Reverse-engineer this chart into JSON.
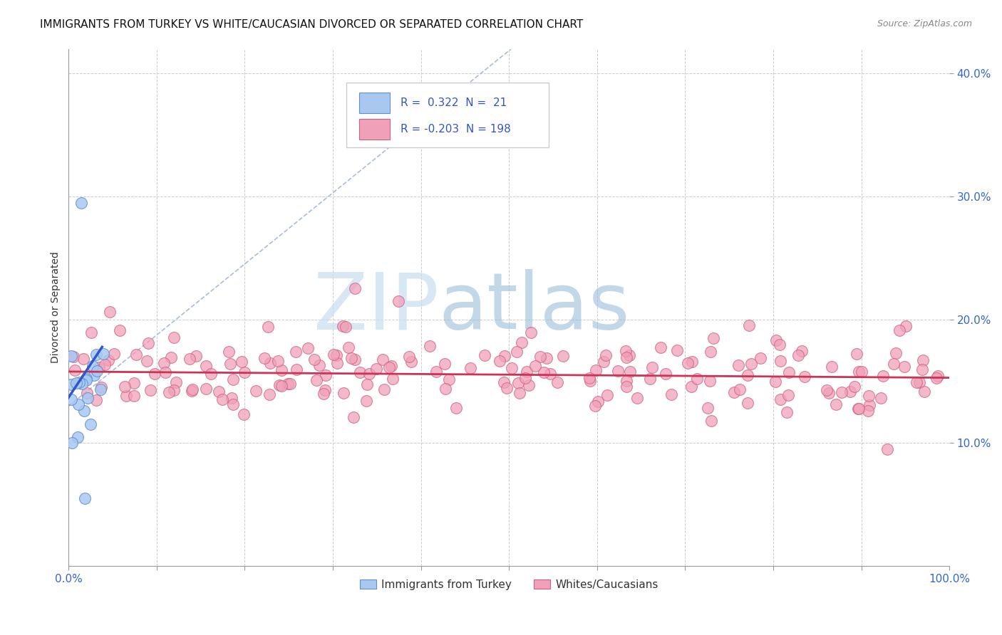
{
  "title": "IMMIGRANTS FROM TURKEY VS WHITE/CAUCASIAN DIVORCED OR SEPARATED CORRELATION CHART",
  "source": "Source: ZipAtlas.com",
  "ylabel": "Divorced or Separated",
  "xlim": [
    0.0,
    1.0
  ],
  "ylim": [
    0.0,
    0.42
  ],
  "xticks": [
    0.0,
    0.1,
    0.2,
    0.3,
    0.4,
    0.5,
    0.6,
    0.7,
    0.8,
    0.9,
    1.0
  ],
  "xticklabels": [
    "0.0%",
    "",
    "",
    "",
    "",
    "",
    "",
    "",
    "",
    "",
    "100.0%"
  ],
  "yticks": [
    0.1,
    0.2,
    0.3,
    0.4
  ],
  "yticklabels": [
    "10.0%",
    "20.0%",
    "30.0%",
    "40.0%"
  ],
  "grid_color": "#cccccc",
  "background_color": "#ffffff",
  "blue_fill": "#a8c8f0",
  "blue_edge": "#6090d0",
  "pink_fill": "#f0a0b8",
  "pink_edge": "#d06080",
  "blue_line_color": "#3355cc",
  "pink_line_color": "#cc3355",
  "dash_line_color": "#aabbdd",
  "R_blue": 0.322,
  "N_blue": 21,
  "R_pink": -0.203,
  "N_pink": 198,
  "legend_labels": [
    "Immigrants from Turkey",
    "Whites/Caucasians"
  ],
  "watermark_zip": "ZIP",
  "watermark_atlas": "atlas"
}
